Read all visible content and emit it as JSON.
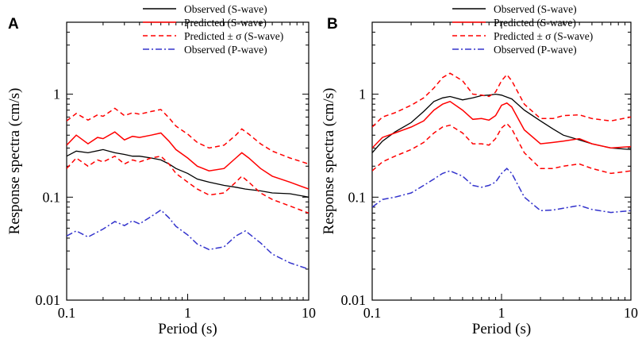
{
  "chart_data": [
    {
      "type": "line",
      "panel_label": "A",
      "xlabel": "Period (s)",
      "ylabel": "Response spectra (cm/s)",
      "xscale": "log",
      "yscale": "log",
      "xlim": [
        0.1,
        10
      ],
      "ylim": [
        0.01,
        5
      ],
      "x_ticks": [
        {
          "v": 0.1,
          "label": "0.1"
        },
        {
          "v": 1,
          "label": "1"
        },
        {
          "v": 10,
          "label": "10"
        }
      ],
      "y_ticks": [
        {
          "v": 0.01,
          "label": "0.01"
        },
        {
          "v": 0.1,
          "label": "0.1"
        },
        {
          "v": 1,
          "label": "1"
        }
      ],
      "legend": "top-right",
      "series": [
        {
          "name": "Observed (S-wave)",
          "color": "#000000",
          "dash": "solid",
          "x": [
            0.1,
            0.12,
            0.15,
            0.2,
            0.25,
            0.3,
            0.35,
            0.4,
            0.5,
            0.6,
            0.7,
            0.8,
            1.0,
            1.2,
            1.5,
            2.0,
            2.5,
            3.0,
            4.0,
            5.0,
            7.0,
            10.0
          ],
          "y": [
            0.25,
            0.28,
            0.27,
            0.29,
            0.27,
            0.26,
            0.25,
            0.25,
            0.24,
            0.23,
            0.21,
            0.19,
            0.17,
            0.15,
            0.14,
            0.13,
            0.125,
            0.12,
            0.115,
            0.11,
            0.108,
            0.1
          ]
        },
        {
          "name": "Predicted (S-wave)",
          "color": "#ff0000",
          "dash": "solid",
          "x": [
            0.1,
            0.12,
            0.15,
            0.18,
            0.2,
            0.25,
            0.3,
            0.35,
            0.4,
            0.5,
            0.6,
            0.7,
            0.8,
            1.0,
            1.2,
            1.5,
            2.0,
            2.5,
            2.8,
            3.2,
            4.0,
            5.0,
            7.0,
            10.0
          ],
          "y": [
            0.32,
            0.4,
            0.33,
            0.38,
            0.37,
            0.43,
            0.36,
            0.39,
            0.38,
            0.4,
            0.42,
            0.35,
            0.29,
            0.24,
            0.2,
            0.18,
            0.19,
            0.24,
            0.27,
            0.24,
            0.19,
            0.16,
            0.14,
            0.12
          ]
        },
        {
          "name": "Predicted ± σ (S-wave)",
          "color": "#ff0000",
          "dash": "dashed",
          "x": [
            0.1,
            0.12,
            0.15,
            0.18,
            0.2,
            0.25,
            0.3,
            0.35,
            0.4,
            0.5,
            0.6,
            0.7,
            0.8,
            1.0,
            1.2,
            1.5,
            2.0,
            2.5,
            2.8,
            3.2,
            4.0,
            5.0,
            7.0,
            10.0
          ],
          "y": [
            0.55,
            0.65,
            0.56,
            0.63,
            0.61,
            0.73,
            0.62,
            0.66,
            0.64,
            0.68,
            0.71,
            0.59,
            0.49,
            0.41,
            0.34,
            0.3,
            0.32,
            0.4,
            0.46,
            0.41,
            0.33,
            0.28,
            0.24,
            0.21
          ],
          "y2": [
            0.19,
            0.24,
            0.2,
            0.23,
            0.22,
            0.25,
            0.21,
            0.23,
            0.22,
            0.24,
            0.25,
            0.21,
            0.17,
            0.14,
            0.12,
            0.105,
            0.11,
            0.14,
            0.16,
            0.14,
            0.11,
            0.095,
            0.082,
            0.07
          ]
        },
        {
          "name": "Observed (P-wave)",
          "color": "#3333cc",
          "dash": "dashdot",
          "x": [
            0.1,
            0.12,
            0.15,
            0.2,
            0.25,
            0.3,
            0.35,
            0.4,
            0.5,
            0.6,
            0.7,
            0.8,
            1.0,
            1.2,
            1.5,
            2.0,
            2.5,
            3.0,
            4.0,
            5.0,
            7.0,
            10.0
          ],
          "y": [
            0.042,
            0.047,
            0.041,
            0.049,
            0.058,
            0.053,
            0.059,
            0.055,
            0.065,
            0.075,
            0.063,
            0.052,
            0.043,
            0.035,
            0.031,
            0.033,
            0.042,
            0.047,
            0.036,
            0.028,
            0.023,
            0.02
          ]
        }
      ]
    },
    {
      "type": "line",
      "panel_label": "B",
      "xlabel": "Period (s)",
      "ylabel": "Response spectra (cm/s)",
      "xscale": "log",
      "yscale": "log",
      "xlim": [
        0.1,
        10
      ],
      "ylim": [
        0.01,
        5
      ],
      "x_ticks": [
        {
          "v": 0.1,
          "label": "0.1"
        },
        {
          "v": 1,
          "label": "1"
        },
        {
          "v": 10,
          "label": "10"
        }
      ],
      "y_ticks": [
        {
          "v": 0.01,
          "label": "0.01"
        },
        {
          "v": 0.1,
          "label": "0.1"
        },
        {
          "v": 1,
          "label": "1"
        }
      ],
      "legend": "top-right",
      "series": [
        {
          "name": "Observed (S-wave)",
          "color": "#000000",
          "dash": "solid",
          "x": [
            0.1,
            0.12,
            0.15,
            0.2,
            0.25,
            0.3,
            0.35,
            0.4,
            0.5,
            0.6,
            0.7,
            0.8,
            0.9,
            1.0,
            1.2,
            1.5,
            2.0,
            2.5,
            3.0,
            4.0,
            5.0,
            7.0,
            10.0
          ],
          "y": [
            0.27,
            0.35,
            0.43,
            0.53,
            0.68,
            0.85,
            0.92,
            0.95,
            0.88,
            0.92,
            0.97,
            0.98,
            1.0,
            0.98,
            0.9,
            0.7,
            0.55,
            0.46,
            0.4,
            0.36,
            0.33,
            0.3,
            0.29
          ]
        },
        {
          "name": "Predicted (S-wave)",
          "color": "#ff0000",
          "dash": "solid",
          "x": [
            0.1,
            0.12,
            0.15,
            0.2,
            0.25,
            0.3,
            0.35,
            0.4,
            0.5,
            0.6,
            0.7,
            0.8,
            0.9,
            1.0,
            1.1,
            1.2,
            1.5,
            2.0,
            2.5,
            3.0,
            4.0,
            5.0,
            7.0,
            10.0
          ],
          "y": [
            0.3,
            0.38,
            0.42,
            0.48,
            0.55,
            0.7,
            0.8,
            0.85,
            0.7,
            0.57,
            0.58,
            0.56,
            0.62,
            0.78,
            0.82,
            0.75,
            0.45,
            0.33,
            0.34,
            0.35,
            0.37,
            0.33,
            0.3,
            0.31
          ]
        },
        {
          "name": "Predicted ± σ (S-wave)",
          "color": "#ff0000",
          "dash": "dashed",
          "x": [
            0.1,
            0.12,
            0.15,
            0.2,
            0.25,
            0.3,
            0.35,
            0.4,
            0.5,
            0.6,
            0.7,
            0.8,
            0.9,
            1.0,
            1.1,
            1.2,
            1.5,
            2.0,
            2.5,
            3.0,
            4.0,
            5.0,
            7.0,
            10.0
          ],
          "y": [
            0.48,
            0.6,
            0.66,
            0.78,
            0.92,
            1.15,
            1.45,
            1.6,
            1.35,
            1.0,
            0.98,
            0.95,
            1.05,
            1.35,
            1.55,
            1.35,
            0.8,
            0.58,
            0.58,
            0.62,
            0.63,
            0.58,
            0.55,
            0.6
          ],
          "y2": [
            0.18,
            0.22,
            0.25,
            0.29,
            0.34,
            0.42,
            0.48,
            0.5,
            0.42,
            0.33,
            0.33,
            0.32,
            0.37,
            0.47,
            0.52,
            0.46,
            0.27,
            0.19,
            0.19,
            0.2,
            0.21,
            0.19,
            0.17,
            0.18
          ]
        },
        {
          "name": "Observed (P-wave)",
          "color": "#3333cc",
          "dash": "dashdot",
          "x": [
            0.1,
            0.12,
            0.15,
            0.2,
            0.25,
            0.3,
            0.35,
            0.4,
            0.5,
            0.6,
            0.7,
            0.8,
            0.9,
            1.0,
            1.1,
            1.2,
            1.5,
            2.0,
            2.5,
            3.0,
            4.0,
            5.0,
            7.0,
            10.0
          ],
          "y": [
            0.08,
            0.095,
            0.1,
            0.11,
            0.13,
            0.15,
            0.17,
            0.18,
            0.16,
            0.13,
            0.125,
            0.13,
            0.14,
            0.17,
            0.19,
            0.17,
            0.1,
            0.074,
            0.075,
            0.078,
            0.083,
            0.076,
            0.071,
            0.074
          ]
        }
      ]
    }
  ]
}
